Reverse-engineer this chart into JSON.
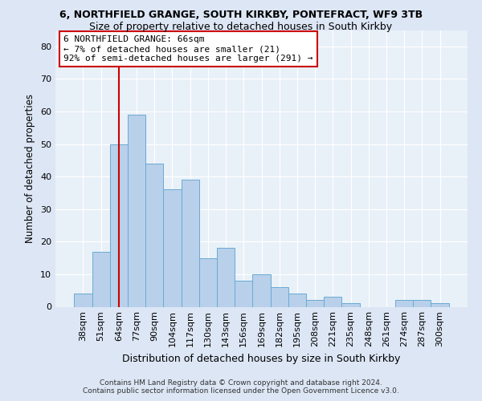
{
  "title1": "6, NORTHFIELD GRANGE, SOUTH KIRKBY, PONTEFRACT, WF9 3TB",
  "title2": "Size of property relative to detached houses in South Kirkby",
  "xlabel": "Distribution of detached houses by size in South Kirkby",
  "ylabel": "Number of detached properties",
  "categories": [
    "38sqm",
    "51sqm",
    "64sqm",
    "77sqm",
    "90sqm",
    "104sqm",
    "117sqm",
    "130sqm",
    "143sqm",
    "156sqm",
    "169sqm",
    "182sqm",
    "195sqm",
    "208sqm",
    "221sqm",
    "235sqm",
    "248sqm",
    "261sqm",
    "274sqm",
    "287sqm",
    "300sqm"
  ],
  "values": [
    4,
    17,
    50,
    59,
    44,
    36,
    39,
    15,
    18,
    8,
    10,
    6,
    4,
    2,
    3,
    1,
    0,
    0,
    2,
    2,
    1
  ],
  "bar_color": "#b8d0ea",
  "bar_edge_color": "#6aaad4",
  "vline_x_index": 2,
  "vline_color": "#cc0000",
  "annotation_line1": "6 NORTHFIELD GRANGE: 66sqm",
  "annotation_line2": "← 7% of detached houses are smaller (21)",
  "annotation_line3": "92% of semi-detached houses are larger (291) →",
  "annotation_box_color": "#ffffff",
  "annotation_box_edge": "#cc0000",
  "ylim": [
    0,
    85
  ],
  "yticks": [
    0,
    10,
    20,
    30,
    40,
    50,
    60,
    70,
    80
  ],
  "footer1": "Contains HM Land Registry data © Crown copyright and database right 2024.",
  "footer2": "Contains public sector information licensed under the Open Government Licence v3.0.",
  "bg_color": "#dce6f5",
  "plot_bg_color": "#e8f0f8",
  "title1_fontsize": 9,
  "title2_fontsize": 9,
  "ylabel_fontsize": 8.5,
  "xlabel_fontsize": 9,
  "tick_fontsize": 8,
  "annotation_fontsize": 8,
  "footer_fontsize": 6.5
}
